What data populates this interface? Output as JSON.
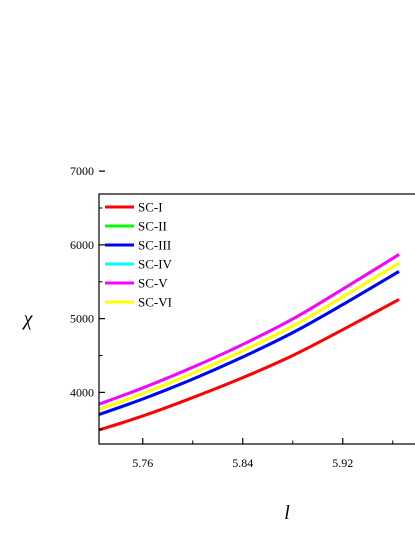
{
  "chart_data": {
    "type": "line",
    "xlabel": "l",
    "ylabel": "χ",
    "xlim": [
      5.725,
      6.0
    ],
    "ylim": [
      3300,
      7050
    ],
    "x_ticks": [
      5.76,
      5.84,
      5.92
    ],
    "x_tick_labels": [
      "5.76",
      "5.84",
      "5.92"
    ],
    "y_ticks": [
      4000,
      5000,
      6000,
      7000
    ],
    "y_tick_labels": [
      "4000",
      "5000",
      "6000",
      "7000"
    ],
    "legend_position": "top-left",
    "grid": false,
    "series": [
      {
        "name": "SC-I",
        "color": "#ff0000",
        "x": [
          5.725,
          5.76,
          5.8,
          5.84,
          5.88,
          5.92,
          5.965
        ],
        "y": [
          3490,
          3680,
          3930,
          4200,
          4500,
          4850,
          5260
        ]
      },
      {
        "name": "SC-II",
        "color": "#00ff00",
        "x": [
          5.725,
          5.76,
          5.8,
          5.84,
          5.88,
          5.92,
          5.965
        ],
        "y": [
          3700,
          3910,
          4180,
          4480,
          4810,
          5190,
          5640
        ]
      },
      {
        "name": "SC-III",
        "color": "#0000ff",
        "x": [
          5.725,
          5.76,
          5.8,
          5.84,
          5.88,
          5.92,
          5.965
        ],
        "y": [
          3700,
          3910,
          4180,
          4480,
          4810,
          5190,
          5640
        ]
      },
      {
        "name": "SC-IV",
        "color": "#00ffff",
        "x": [
          5.725,
          5.76,
          5.8,
          5.84,
          5.88,
          5.92,
          5.965
        ],
        "y": [
          3840,
          4060,
          4340,
          4650,
          4995,
          5400,
          5870
        ]
      },
      {
        "name": "SC-V",
        "color": "#ff00ff",
        "x": [
          5.725,
          5.76,
          5.8,
          5.84,
          5.88,
          5.92,
          5.965
        ],
        "y": [
          3840,
          4060,
          4340,
          4650,
          4995,
          5400,
          5870
        ]
      },
      {
        "name": "SC-VI",
        "color": "#ffff00",
        "x": [
          5.725,
          5.76,
          5.8,
          5.84,
          5.88,
          5.92,
          5.965
        ],
        "y": [
          3770,
          3985,
          4260,
          4565,
          4900,
          5295,
          5755
        ]
      }
    ]
  }
}
